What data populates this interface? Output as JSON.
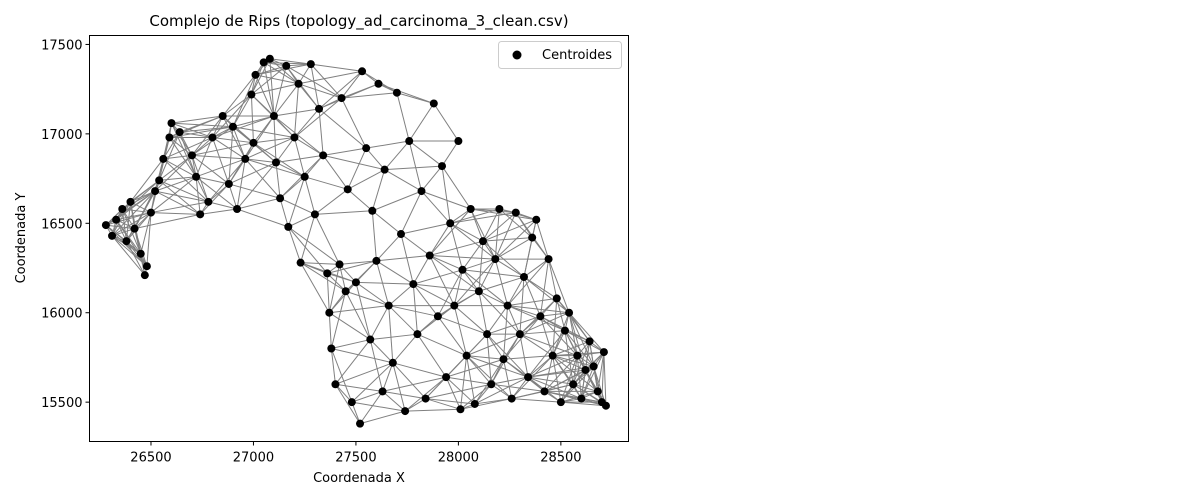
{
  "chart_data": {
    "type": "scatter",
    "title": "Complejo de Rips (topology_ad_carcinoma_3_clean.csv)",
    "xlabel": "Coordenada X",
    "ylabel": "Coordenada Y",
    "xlim": [
      26200,
      28830
    ],
    "ylim": [
      15280,
      17550
    ],
    "xticks": [
      26500,
      27000,
      27500,
      28000,
      28500
    ],
    "yticks": [
      15500,
      16000,
      16500,
      17000,
      17500
    ],
    "grid": false,
    "legend": {
      "placement": "top-right",
      "entries": [
        "Centroides"
      ]
    },
    "series": [
      {
        "name": "Centroides",
        "marker_color": "#000000",
        "edge_color": "#808080",
        "points": [
          [
            26280,
            16490
          ],
          [
            26310,
            16430
          ],
          [
            26330,
            16520
          ],
          [
            26360,
            16580
          ],
          [
            26380,
            16400
          ],
          [
            26400,
            16620
          ],
          [
            26420,
            16470
          ],
          [
            26450,
            16330
          ],
          [
            26470,
            16210
          ],
          [
            26480,
            16260
          ],
          [
            26500,
            16560
          ],
          [
            26520,
            16680
          ],
          [
            26540,
            16740
          ],
          [
            26560,
            16860
          ],
          [
            26590,
            16980
          ],
          [
            26600,
            17060
          ],
          [
            26640,
            17010
          ],
          [
            26700,
            16880
          ],
          [
            26720,
            16760
          ],
          [
            26740,
            16550
          ],
          [
            26780,
            16620
          ],
          [
            26800,
            16980
          ],
          [
            26850,
            17100
          ],
          [
            26900,
            17040
          ],
          [
            26880,
            16720
          ],
          [
            26920,
            16580
          ],
          [
            26960,
            16860
          ],
          [
            26990,
            17220
          ],
          [
            27000,
            16950
          ],
          [
            27010,
            17330
          ],
          [
            27050,
            17400
          ],
          [
            27080,
            17420
          ],
          [
            27100,
            17100
          ],
          [
            27110,
            16840
          ],
          [
            27130,
            16640
          ],
          [
            27160,
            17380
          ],
          [
            27170,
            16480
          ],
          [
            27200,
            16980
          ],
          [
            27220,
            17280
          ],
          [
            27230,
            16280
          ],
          [
            27250,
            16760
          ],
          [
            27280,
            17390
          ],
          [
            27300,
            16550
          ],
          [
            27320,
            17140
          ],
          [
            27340,
            16880
          ],
          [
            27360,
            16220
          ],
          [
            27370,
            16000
          ],
          [
            27380,
            15800
          ],
          [
            27400,
            15600
          ],
          [
            27420,
            16270
          ],
          [
            27430,
            17200
          ],
          [
            27450,
            16120
          ],
          [
            27460,
            16690
          ],
          [
            27480,
            15500
          ],
          [
            27500,
            16170
          ],
          [
            27520,
            15380
          ],
          [
            27530,
            17350
          ],
          [
            27550,
            16920
          ],
          [
            27570,
            15850
          ],
          [
            27580,
            16570
          ],
          [
            27600,
            16290
          ],
          [
            27610,
            17280
          ],
          [
            27630,
            15560
          ],
          [
            27640,
            16800
          ],
          [
            27660,
            16040
          ],
          [
            27680,
            15720
          ],
          [
            27700,
            17230
          ],
          [
            27720,
            16440
          ],
          [
            27740,
            15450
          ],
          [
            27760,
            16960
          ],
          [
            27780,
            16160
          ],
          [
            27800,
            15880
          ],
          [
            27820,
            16680
          ],
          [
            27840,
            15520
          ],
          [
            27860,
            16320
          ],
          [
            27880,
            17170
          ],
          [
            27900,
            15980
          ],
          [
            27920,
            16820
          ],
          [
            27940,
            15640
          ],
          [
            27960,
            16500
          ],
          [
            27980,
            16040
          ],
          [
            28000,
            16960
          ],
          [
            28010,
            15460
          ],
          [
            28020,
            16240
          ],
          [
            28040,
            15760
          ],
          [
            28060,
            16580
          ],
          [
            28080,
            15490
          ],
          [
            28100,
            16120
          ],
          [
            28120,
            16400
          ],
          [
            28140,
            15880
          ],
          [
            28160,
            15600
          ],
          [
            28180,
            16300
          ],
          [
            28200,
            16580
          ],
          [
            28220,
            15740
          ],
          [
            28240,
            16040
          ],
          [
            28260,
            15520
          ],
          [
            28280,
            16560
          ],
          [
            28300,
            15880
          ],
          [
            28320,
            16200
          ],
          [
            28340,
            15640
          ],
          [
            28360,
            16420
          ],
          [
            28380,
            16520
          ],
          [
            28400,
            15980
          ],
          [
            28420,
            15560
          ],
          [
            28440,
            16300
          ],
          [
            28460,
            15760
          ],
          [
            28480,
            16080
          ],
          [
            28500,
            15500
          ],
          [
            28520,
            15900
          ],
          [
            28540,
            16000
          ],
          [
            28560,
            15600
          ],
          [
            28580,
            15760
          ],
          [
            28600,
            15520
          ],
          [
            28620,
            15680
          ],
          [
            28640,
            15840
          ],
          [
            28660,
            15700
          ],
          [
            28680,
            15560
          ],
          [
            28700,
            15500
          ],
          [
            28710,
            15780
          ],
          [
            28720,
            15480
          ]
        ]
      }
    ]
  }
}
